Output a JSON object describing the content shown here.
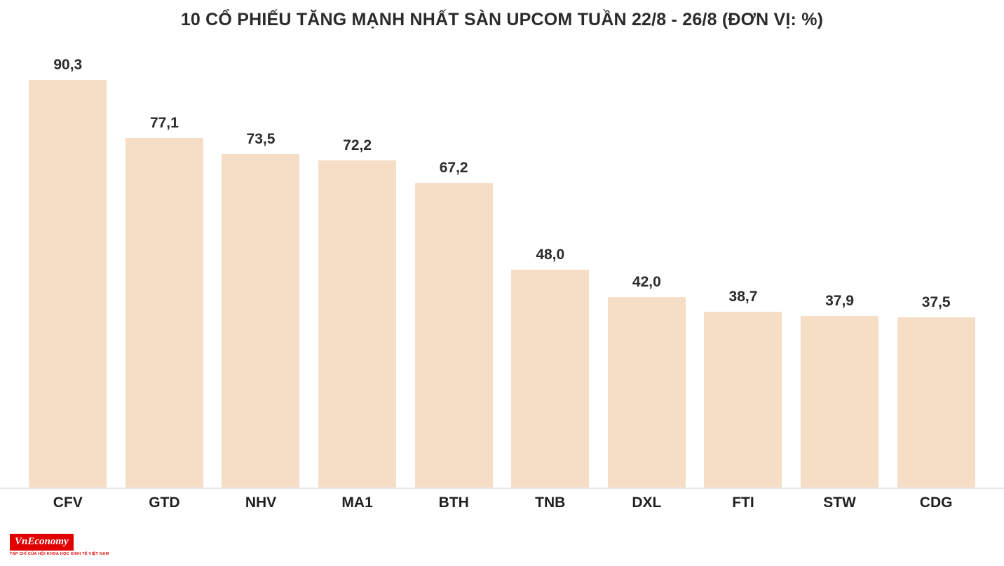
{
  "chart_data": {
    "type": "bar",
    "title": "10 CỔ PHIẾU TĂNG MẠNH NHẤT SÀN UPCOM TUẦN 22/8 - 26/8 (ĐƠN VỊ: %)",
    "categories": [
      "CFV",
      "GTD",
      "NHV",
      "MA1",
      "BTH",
      "TNB",
      "DXL",
      "FTI",
      "STW",
      "CDG"
    ],
    "values": [
      90.3,
      77.1,
      73.5,
      72.2,
      67.2,
      48.0,
      42.0,
      38.7,
      37.9,
      37.5
    ],
    "value_labels": [
      "90,3",
      "77,1",
      "73,5",
      "72,2",
      "67,2",
      "48,0",
      "42,0",
      "38,7",
      "37,9",
      "37,5"
    ],
    "xlabel": "",
    "ylabel": "",
    "ylim": [
      0,
      95
    ],
    "grid": false,
    "legend": "none",
    "bar_color": "#f6ddc6",
    "text_color": "#2b2b2b"
  },
  "footer": {
    "logo_text": "VnEconomy",
    "tagline": "TẠP CHÍ CỦA HỘI KHOA HỌC KINH TẾ VIỆT NAM"
  }
}
